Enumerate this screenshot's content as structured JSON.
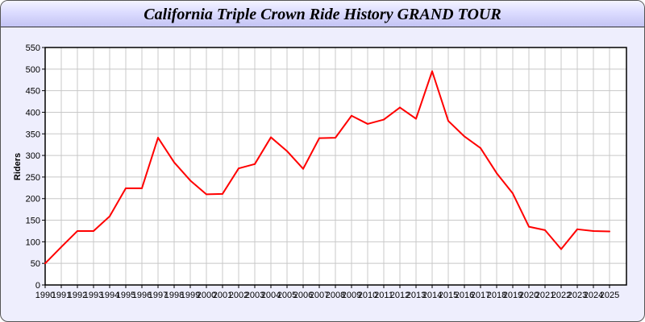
{
  "chart_data": {
    "type": "line",
    "title": "California Triple Crown Ride History GRAND TOUR",
    "xlabel": "",
    "ylabel": "Riders",
    "ylim": [
      0,
      550
    ],
    "yticks": [
      0,
      50,
      100,
      150,
      200,
      250,
      300,
      350,
      400,
      450,
      500,
      550
    ],
    "grid": true,
    "x": [
      1990,
      1991,
      1992,
      1993,
      1994,
      1995,
      1996,
      1997,
      1998,
      1999,
      2000,
      2001,
      2002,
      2003,
      2004,
      2005,
      2006,
      2007,
      2008,
      2009,
      2010,
      2011,
      2012,
      2013,
      2014,
      2015,
      2016,
      2017,
      2018,
      2019,
      2020,
      2021,
      2022,
      2023,
      2024,
      2025
    ],
    "series": [
      {
        "values": [
          50,
          88,
          125,
          125,
          159,
          224,
          224,
          341,
          284,
          242,
          210,
          211,
          270,
          280,
          342,
          310,
          269,
          340,
          341,
          392,
          373,
          383,
          411,
          385,
          495,
          380,
          344,
          317,
          259,
          212,
          135,
          127,
          83,
          129,
          125,
          124
        ],
        "color": "#ff0000"
      }
    ]
  }
}
